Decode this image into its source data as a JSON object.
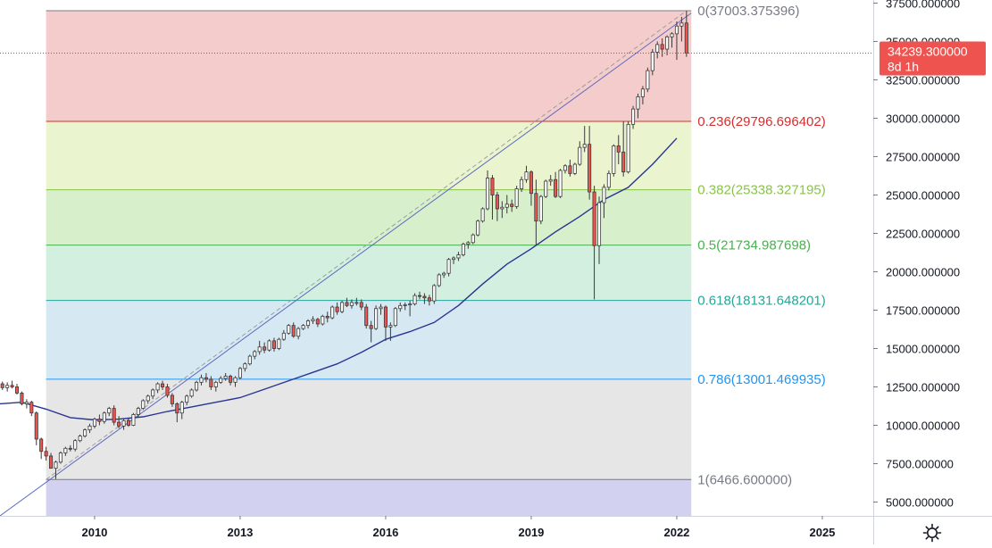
{
  "colors": {
    "up": "#26a69a",
    "down": "#ef5350",
    "candle_body_up": "#ffffff",
    "candle_outline": "#3a3a3a",
    "ma": "#283593",
    "trendline": "#5c6bc0",
    "trend_dashed": "#9e9e9e",
    "price_line": "#e53935",
    "price_tag_bg": "#ef5350",
    "axis_border": "#d1d4dc"
  },
  "price_tag": {
    "value": "34239.300000",
    "countdown": "8d 1h",
    "price": 34239.3
  },
  "settings_icon": "gear-icon",
  "chart_data": {
    "type": "candlestick",
    "y_scale": "linear",
    "ylim": [
      4100,
      37700
    ],
    "xlim": [
      2008.05,
      2026.05
    ],
    "y_ticks": [
      {
        "v": 5000,
        "label": "5000.000000"
      },
      {
        "v": 7500,
        "label": "7500.000000"
      },
      {
        "v": 10000,
        "label": "10000.000000"
      },
      {
        "v": 12500,
        "label": "12500.000000"
      },
      {
        "v": 15000,
        "label": "15000.000000"
      },
      {
        "v": 17500,
        "label": "17500.000000"
      },
      {
        "v": 20000,
        "label": "20000.000000"
      },
      {
        "v": 22500,
        "label": "22500.000000"
      },
      {
        "v": 25000,
        "label": "25000.000000"
      },
      {
        "v": 27500,
        "label": "27500.000000"
      },
      {
        "v": 30000,
        "label": "30000.000000"
      },
      {
        "v": 32500,
        "label": "32500.000000"
      },
      {
        "v": 35000,
        "label": "35000.000000"
      },
      {
        "v": 37500,
        "label": "37500.000000"
      }
    ],
    "x_ticks": [
      {
        "v": 2010,
        "label": "2010"
      },
      {
        "v": 2013,
        "label": "2013"
      },
      {
        "v": 2016,
        "label": "2016"
      },
      {
        "v": 2019,
        "label": "2019"
      },
      {
        "v": 2022,
        "label": "2022"
      },
      {
        "v": 2025,
        "label": "2025"
      }
    ],
    "fibonacci": {
      "x_start": 2009.0,
      "x_end": 2022.3,
      "levels": [
        {
          "ratio": 0,
          "price": 37003.375396,
          "label": "0(37003.375396)",
          "color": "#787b86",
          "fill": "#f4cccc"
        },
        {
          "ratio": 0.236,
          "price": 29796.696402,
          "label": "0.236(29796.696402)",
          "color": "#d32f2f",
          "fill": "#eaf4cf"
        },
        {
          "ratio": 0.382,
          "price": 25338.327195,
          "label": "0.382(25338.327195)",
          "color": "#8bc34a",
          "fill": "#d8efcc"
        },
        {
          "ratio": 0.5,
          "price": 21734.987698,
          "label": "0.5(21734.987698)",
          "color": "#4caf50",
          "fill": "#d3efe0"
        },
        {
          "ratio": 0.618,
          "price": 18131.648201,
          "label": "0.618(18131.648201)",
          "color": "#26a69a",
          "fill": "#d6e9f3"
        },
        {
          "ratio": 0.786,
          "price": 13001.469935,
          "label": "0.786(13001.469935)",
          "color": "#2196f3",
          "fill": "#e6e6e6"
        },
        {
          "ratio": 1,
          "price": 6466.6,
          "label": "1(6466.600000)",
          "color": "#787b86",
          "fill": "#d2d2f0"
        }
      ],
      "extension_bottom": 4100
    },
    "trendlines": [
      {
        "name": "",
        "style": "solid",
        "from": [
          2008.05,
          4100
        ],
        "to": [
          2022.3,
          36850
        ]
      },
      {
        "name": "",
        "style": "dashed",
        "from": [
          2009.0,
          6466.6
        ],
        "to": [
          2022.2,
          37003
        ]
      }
    ],
    "ma": [
      [
        2008.05,
        11400
      ],
      [
        2008.5,
        11500
      ],
      [
        2009.0,
        11050
      ],
      [
        2009.5,
        10500
      ],
      [
        2010.0,
        10350
      ],
      [
        2010.5,
        10400
      ],
      [
        2011.0,
        10550
      ],
      [
        2011.5,
        10900
      ],
      [
        2012.0,
        11200
      ],
      [
        2012.5,
        11500
      ],
      [
        2013.0,
        11800
      ],
      [
        2013.5,
        12350
      ],
      [
        2014.0,
        12900
      ],
      [
        2014.5,
        13450
      ],
      [
        2015.0,
        14000
      ],
      [
        2015.5,
        14750
      ],
      [
        2016.0,
        15600
      ],
      [
        2016.5,
        16100
      ],
      [
        2017.0,
        16700
      ],
      [
        2017.5,
        17800
      ],
      [
        2018.0,
        19200
      ],
      [
        2018.5,
        20500
      ],
      [
        2019.0,
        21500
      ],
      [
        2019.5,
        22600
      ],
      [
        2020.0,
        23600
      ],
      [
        2020.5,
        24700
      ],
      [
        2021.0,
        25500
      ],
      [
        2021.5,
        27000
      ],
      [
        2022.0,
        28700
      ]
    ],
    "ohlc_monthly": [
      [
        2008.0,
        13000,
        13100,
        12600,
        12700
      ],
      [
        2008.1,
        12700,
        12850,
        12300,
        12450
      ],
      [
        2008.2,
        12450,
        12800,
        12200,
        12600
      ],
      [
        2008.3,
        12600,
        12900,
        12400,
        12500
      ],
      [
        2008.4,
        12500,
        12700,
        12000,
        12100
      ],
      [
        2008.5,
        12100,
        12200,
        11300,
        11400
      ],
      [
        2008.6,
        11400,
        11700,
        11100,
        11500
      ],
      [
        2008.7,
        11500,
        11600,
        10600,
        10800
      ],
      [
        2008.8,
        10800,
        10900,
        8700,
        9100
      ],
      [
        2008.9,
        9100,
        9200,
        7800,
        8300
      ],
      [
        2009.0,
        8300,
        8600,
        7700,
        8000
      ],
      [
        2009.1,
        8000,
        8200,
        7200,
        7200
      ],
      [
        2009.2,
        7200,
        7700,
        6500,
        7600
      ],
      [
        2009.3,
        7600,
        8300,
        7500,
        8200
      ],
      [
        2009.4,
        8200,
        8600,
        8000,
        8500
      ],
      [
        2009.5,
        8500,
        8700,
        8300,
        8450
      ],
      [
        2009.6,
        8450,
        9100,
        8300,
        9000
      ],
      [
        2009.7,
        9000,
        9400,
        8900,
        9300
      ],
      [
        2009.8,
        9300,
        9800,
        9200,
        9700
      ],
      [
        2009.9,
        9700,
        10100,
        9500,
        9950
      ],
      [
        2010.0,
        9950,
        10500,
        9800,
        10400
      ],
      [
        2010.1,
        10400,
        10700,
        10000,
        10250
      ],
      [
        2010.2,
        10250,
        10900,
        10100,
        10800
      ],
      [
        2010.3,
        10800,
        11200,
        10600,
        11100
      ],
      [
        2010.4,
        11100,
        11300,
        10000,
        10200
      ],
      [
        2010.5,
        10200,
        10600,
        9800,
        9950
      ],
      [
        2010.6,
        9950,
        10400,
        9700,
        10300
      ],
      [
        2010.7,
        10300,
        10500,
        9900,
        10000
      ],
      [
        2010.8,
        10000,
        10800,
        9950,
        10700
      ],
      [
        2010.9,
        10700,
        11200,
        10500,
        11100
      ],
      [
        2011.0,
        11100,
        11700,
        11000,
        11600
      ],
      [
        2011.1,
        11600,
        12000,
        11400,
        11900
      ],
      [
        2011.2,
        11900,
        12400,
        11700,
        12300
      ],
      [
        2011.3,
        12300,
        12800,
        12100,
        12700
      ],
      [
        2011.4,
        12700,
        12900,
        12300,
        12500
      ],
      [
        2011.5,
        12500,
        12700,
        11800,
        11950
      ],
      [
        2011.6,
        11950,
        12100,
        11200,
        11400
      ],
      [
        2011.7,
        11400,
        11500,
        10200,
        10800
      ],
      [
        2011.8,
        10800,
        11600,
        10400,
        11500
      ],
      [
        2011.9,
        11500,
        12000,
        11300,
        11900
      ],
      [
        2012.0,
        11900,
        12400,
        11800,
        12300
      ],
      [
        2012.1,
        12300,
        12900,
        12200,
        12800
      ],
      [
        2012.2,
        12800,
        13300,
        12600,
        13100
      ],
      [
        2012.3,
        13100,
        13400,
        12800,
        13000
      ],
      [
        2012.4,
        13000,
        13200,
        12300,
        12500
      ],
      [
        2012.5,
        12500,
        12900,
        12200,
        12800
      ],
      [
        2012.6,
        12800,
        13200,
        12700,
        13050
      ],
      [
        2012.7,
        13050,
        13400,
        12900,
        13200
      ],
      [
        2012.8,
        13200,
        13300,
        12600,
        12800
      ],
      [
        2012.9,
        12800,
        13200,
        12500,
        13100
      ],
      [
        2013.0,
        13100,
        13800,
        13000,
        13700
      ],
      [
        2013.1,
        13700,
        14100,
        13500,
        14000
      ],
      [
        2013.2,
        14000,
        14600,
        13900,
        14500
      ],
      [
        2013.3,
        14500,
        14900,
        14300,
        14800
      ],
      [
        2013.4,
        14800,
        15500,
        14600,
        15100
      ],
      [
        2013.5,
        15100,
        15400,
        14700,
        14900
      ],
      [
        2013.6,
        14900,
        15600,
        14800,
        15500
      ],
      [
        2013.7,
        15500,
        15700,
        14800,
        15000
      ],
      [
        2013.8,
        15000,
        15700,
        14900,
        15600
      ],
      [
        2013.9,
        15600,
        16200,
        15500,
        16000
      ],
      [
        2014.0,
        16000,
        16600,
        15900,
        16500
      ],
      [
        2014.1,
        16500,
        16700,
        15700,
        15800
      ],
      [
        2014.2,
        15800,
        16400,
        15600,
        16300
      ],
      [
        2014.3,
        16300,
        16600,
        16200,
        16500
      ],
      [
        2014.4,
        16500,
        16900,
        16300,
        16800
      ],
      [
        2014.5,
        16800,
        17100,
        16600,
        16900
      ],
      [
        2014.6,
        16900,
        17000,
        16400,
        16600
      ],
      [
        2014.7,
        16600,
        17200,
        16500,
        17100
      ],
      [
        2014.8,
        17100,
        17400,
        16700,
        17000
      ],
      [
        2014.9,
        17000,
        17800,
        16900,
        17700
      ],
      [
        2015.0,
        17700,
        18000,
        17200,
        17400
      ],
      [
        2015.1,
        17400,
        18100,
        17300,
        18000
      ],
      [
        2015.2,
        18000,
        18300,
        17700,
        17800
      ],
      [
        2015.3,
        17800,
        18200,
        17600,
        18000
      ],
      [
        2015.4,
        18000,
        18300,
        17800,
        18000
      ],
      [
        2015.5,
        18000,
        18200,
        17500,
        17700
      ],
      [
        2015.6,
        17700,
        17900,
        16300,
        16500
      ],
      [
        2015.7,
        16500,
        16800,
        15400,
        16300
      ],
      [
        2015.8,
        16300,
        17800,
        16200,
        17600
      ],
      [
        2015.9,
        17600,
        17900,
        17200,
        17700
      ],
      [
        2016.0,
        17700,
        17800,
        15500,
        16400
      ],
      [
        2016.1,
        16400,
        16700,
        15500,
        16500
      ],
      [
        2016.2,
        16500,
        17700,
        16400,
        17600
      ],
      [
        2016.3,
        17600,
        18000,
        17400,
        17800
      ],
      [
        2016.4,
        17800,
        18000,
        17500,
        17850
      ],
      [
        2016.5,
        17850,
        18100,
        17100,
        17900
      ],
      [
        2016.6,
        17900,
        18600,
        17800,
        18450
      ],
      [
        2016.7,
        18450,
        18700,
        18200,
        18400
      ],
      [
        2016.8,
        18400,
        18600,
        17900,
        18300
      ],
      [
        2016.9,
        18300,
        18500,
        17800,
        18100
      ],
      [
        2017.0,
        18100,
        19200,
        17900,
        19100
      ],
      [
        2017.1,
        19100,
        19900,
        19000,
        19800
      ],
      [
        2017.2,
        19800,
        20000,
        19600,
        19900
      ],
      [
        2017.3,
        19900,
        20900,
        19700,
        20800
      ],
      [
        2017.4,
        20800,
        21000,
        20500,
        20900
      ],
      [
        2017.5,
        20900,
        21300,
        20700,
        21100
      ],
      [
        2017.6,
        21100,
        21900,
        21000,
        21800
      ],
      [
        2017.7,
        21800,
        22000,
        21500,
        21900
      ],
      [
        2017.8,
        21900,
        22500,
        21800,
        22400
      ],
      [
        2017.9,
        22400,
        23400,
        22300,
        23300
      ],
      [
        2018.0,
        23300,
        24200,
        23200,
        24100
      ],
      [
        2018.1,
        24100,
        26600,
        24000,
        26100
      ],
      [
        2018.2,
        26100,
        26300,
        23400,
        25000
      ],
      [
        2018.3,
        25000,
        25200,
        23300,
        24100
      ],
      [
        2018.4,
        24100,
        24600,
        23500,
        24200
      ],
      [
        2018.5,
        24200,
        25000,
        23800,
        24400
      ],
      [
        2018.6,
        24400,
        24700,
        23900,
        24250
      ],
      [
        2018.7,
        24250,
        25600,
        24100,
        25400
      ],
      [
        2018.8,
        25400,
        26200,
        25200,
        26000
      ],
      [
        2018.9,
        26000,
        26900,
        25800,
        26500
      ],
      [
        2019.0,
        26500,
        26600,
        24300,
        25100
      ],
      [
        2019.1,
        25100,
        26000,
        21700,
        23300
      ],
      [
        2019.2,
        23300,
        25000,
        23100,
        24900
      ],
      [
        2019.3,
        24900,
        26000,
        24800,
        25900
      ],
      [
        2019.4,
        25900,
        26300,
        25600,
        26000
      ],
      [
        2019.5,
        26000,
        26500,
        24800,
        24900
      ],
      [
        2019.6,
        24900,
        26700,
        24800,
        26600
      ],
      [
        2019.7,
        26600,
        27000,
        26400,
        26900
      ],
      [
        2019.8,
        26900,
        27300,
        26200,
        26400
      ],
      [
        2019.9,
        26400,
        27100,
        26300,
        27000
      ],
      [
        2020.0,
        27000,
        28500,
        26900,
        28100
      ],
      [
        2020.1,
        28100,
        29500,
        27800,
        28300
      ],
      [
        2020.2,
        28300,
        29500,
        24700,
        25200
      ],
      [
        2020.3,
        25200,
        25600,
        18200,
        21700
      ],
      [
        2020.4,
        21700,
        24900,
        20500,
        24500
      ],
      [
        2020.5,
        24500,
        25700,
        23500,
        25500
      ],
      [
        2020.6,
        25500,
        26600,
        25300,
        26400
      ],
      [
        2020.7,
        26400,
        28300,
        26200,
        28200
      ],
      [
        2020.8,
        28200,
        28900,
        27000,
        27800
      ],
      [
        2020.9,
        27800,
        29800,
        26200,
        26500
      ],
      [
        2021.0,
        26500,
        29800,
        26400,
        29600
      ],
      [
        2021.1,
        29600,
        30800,
        29300,
        30600
      ],
      [
        2021.2,
        30600,
        31600,
        30000,
        31400
      ],
      [
        2021.3,
        31400,
        32100,
        30900,
        31900
      ],
      [
        2021.4,
        31900,
        33300,
        31700,
        33100
      ],
      [
        2021.5,
        33100,
        34500,
        32800,
        34300
      ],
      [
        2021.6,
        34300,
        35000,
        33900,
        34800
      ],
      [
        2021.7,
        34800,
        35200,
        34000,
        34500
      ],
      [
        2021.8,
        34500,
        35400,
        34100,
        35300
      ],
      [
        2021.9,
        35300,
        35600,
        34600,
        35500
      ],
      [
        2022.0,
        35500,
        36300,
        33800,
        36000
      ],
      [
        2022.1,
        36000,
        36600,
        35000,
        36200
      ],
      [
        2022.2,
        36200,
        37000,
        34000,
        34239
      ]
    ]
  }
}
